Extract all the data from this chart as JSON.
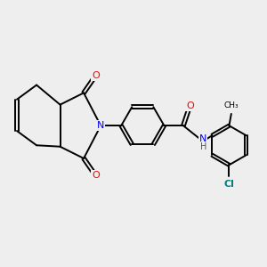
{
  "background_color": "#eeeeee",
  "bond_color": "#000000",
  "atom_colors": {
    "O": "#ff0000",
    "N": "#0000ff",
    "Cl": "#008080",
    "C": "#000000",
    "H": "#555555"
  },
  "figsize": [
    3.0,
    3.0
  ],
  "dpi": 100
}
